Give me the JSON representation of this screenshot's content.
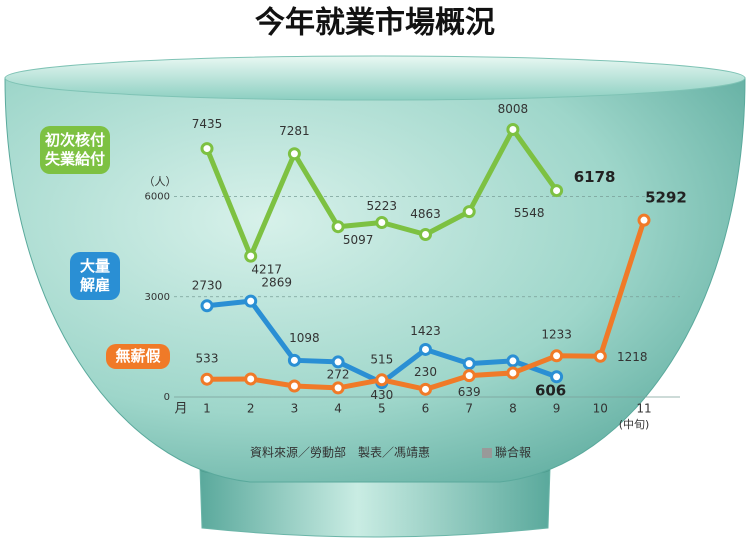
{
  "chart_data": {
    "type": "line",
    "title": "今年就業市場概況",
    "y_unit": "（人）",
    "x_label": "月",
    "x_note": "(中旬)",
    "categories": [
      "1",
      "2",
      "3",
      "4",
      "5",
      "6",
      "7",
      "8",
      "9",
      "10",
      "11"
    ],
    "ylim": [
      0,
      8500
    ],
    "yticks": [
      0,
      3000,
      6000
    ],
    "grid": true,
    "series": [
      {
        "name": "初次核付失業給付",
        "color": "#7dc142",
        "values": [
          7435,
          4217,
          7281,
          5097,
          5223,
          4863,
          5548,
          8008,
          6178,
          null,
          null
        ]
      },
      {
        "name": "大量解雇",
        "color": "#2a8fd4",
        "values": [
          2730,
          2869,
          1098,
          1050,
          430,
          1423,
          1000,
          1080,
          606,
          null,
          null
        ],
        "value_labels": [
          "2730",
          "2869",
          "1098",
          null,
          "430",
          "1423",
          null,
          null,
          "606",
          null,
          null
        ]
      },
      {
        "name": "無薪假",
        "color": "#f07a28",
        "values": [
          533,
          540,
          330,
          272,
          515,
          230,
          639,
          720,
          1233,
          1218,
          5292
        ],
        "value_labels": [
          "533",
          null,
          null,
          "272",
          "515",
          "230",
          "639",
          null,
          "1233",
          "1218",
          "5292"
        ]
      }
    ],
    "source": "資料來源／勞動部　製表／馮靖惠",
    "publisher": "聯合報"
  }
}
